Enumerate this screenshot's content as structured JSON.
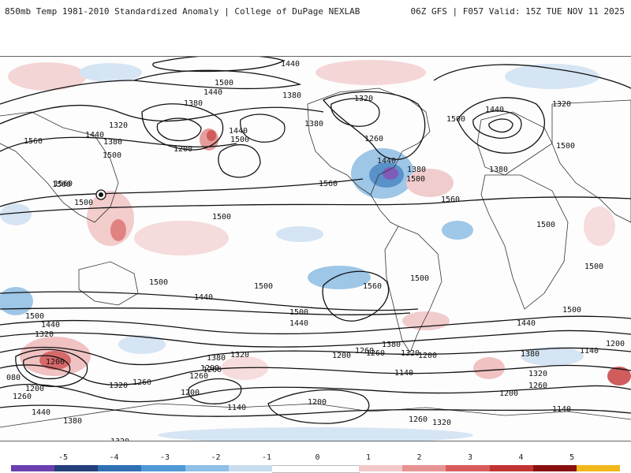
{
  "header": {
    "title_left": "850mb Temp 1981-2010 Standardized Anomaly | College of DuPage NEXLAB",
    "title_right": "06Z GFS | F057 Valid: 15Z TUE NOV 11 2025"
  },
  "map": {
    "field": "850mb temperature standardized anomaly",
    "contour_labels": [
      {
        "id": "n1440",
        "text": "1440"
      },
      {
        "id": "n1500a",
        "text": "1500"
      },
      {
        "id": "n1380a",
        "text": "1380"
      },
      {
        "id": "n1440b",
        "text": "1440"
      },
      {
        "id": "n1320a",
        "text": "1320"
      },
      {
        "id": "n1440c",
        "text": "1440"
      },
      {
        "id": "n1380b",
        "text": "1380"
      },
      {
        "id": "n1500b",
        "text": "1500"
      },
      {
        "id": "n1560a",
        "text": "1560"
      },
      {
        "id": "n1500c",
        "text": "1500"
      },
      {
        "id": "n1200a",
        "text": "1200"
      },
      {
        "id": "n1440d",
        "text": "1440"
      },
      {
        "id": "n1500d",
        "text": "1500"
      },
      {
        "id": "n1380c",
        "text": "1380"
      },
      {
        "id": "n1380d",
        "text": "1380"
      },
      {
        "id": "n1320b",
        "text": "1320"
      },
      {
        "id": "n1260a",
        "text": "1260"
      },
      {
        "id": "n1500e",
        "text": "1500"
      },
      {
        "id": "n1560b",
        "text": "1560"
      },
      {
        "id": "n1440e",
        "text": "1440"
      },
      {
        "id": "n1380e",
        "text": "1380"
      },
      {
        "id": "n1500f",
        "text": "1500"
      },
      {
        "id": "n1560c",
        "text": "1560"
      },
      {
        "id": "n1560d",
        "text": "1560"
      },
      {
        "id": "n1440f",
        "text": "1440"
      },
      {
        "id": "n1320c",
        "text": "1320"
      },
      {
        "id": "n1500g",
        "text": "1500"
      },
      {
        "id": "n1380f",
        "text": "1380"
      },
      {
        "id": "n1500h",
        "text": "1500"
      },
      {
        "id": "n1500i",
        "text": "1500"
      },
      {
        "id": "n1500j",
        "text": "1500"
      },
      {
        "id": "n1500k",
        "text": "1500"
      },
      {
        "id": "n1440g",
        "text": "1440"
      },
      {
        "id": "n1500l",
        "text": "1500"
      },
      {
        "id": "n1560e",
        "text": "1560"
      },
      {
        "id": "n1500m",
        "text": "1500"
      },
      {
        "id": "n1500n",
        "text": "1500"
      },
      {
        "id": "n1500o",
        "text": "1500"
      },
      {
        "id": "s1500a",
        "text": "1500"
      },
      {
        "id": "s1440a",
        "text": "1440"
      },
      {
        "id": "s1320a",
        "text": "1320"
      },
      {
        "id": "s1440b",
        "text": "1440"
      },
      {
        "id": "s1500b",
        "text": "1500"
      },
      {
        "id": "s1380a",
        "text": "1380"
      },
      {
        "id": "s1320b",
        "text": "1320"
      },
      {
        "id": "s1200a",
        "text": "1200"
      },
      {
        "id": "s1260a",
        "text": "1260"
      },
      {
        "id": "s1320c",
        "text": "1320"
      },
      {
        "id": "s1260b",
        "text": "1260"
      },
      {
        "id": "s1200b",
        "text": "1200"
      },
      {
        "id": "s1260c",
        "text": "1260"
      },
      {
        "id": "s1380b",
        "text": "1380"
      },
      {
        "id": "s1320d",
        "text": "1320"
      },
      {
        "id": "s1200c",
        "text": "1200"
      },
      {
        "id": "s1140a",
        "text": "1140"
      },
      {
        "id": "s1200d",
        "text": "1200"
      },
      {
        "id": "s1260d",
        "text": "1260"
      },
      {
        "id": "s1440c",
        "text": "1440"
      },
      {
        "id": "s1380c",
        "text": "1380"
      },
      {
        "id": "s1320e",
        "text": "1320"
      },
      {
        "id": "s1260e",
        "text": "1260"
      },
      {
        "id": "s1200e",
        "text": "1200"
      },
      {
        "id": "s1140b",
        "text": "1140"
      },
      {
        "id": "s1200f",
        "text": "1200"
      },
      {
        "id": "s1080a",
        "text": "080"
      },
      {
        "id": "s1200g",
        "text": "1200"
      },
      {
        "id": "s1260f",
        "text": "1260"
      },
      {
        "id": "s1320f",
        "text": "1320"
      },
      {
        "id": "s1440d",
        "text": "1440"
      },
      {
        "id": "s1380d",
        "text": "1380"
      },
      {
        "id": "s1260g",
        "text": "1260"
      },
      {
        "id": "s1320g",
        "text": "1320"
      },
      {
        "id": "s1140c",
        "text": "1140"
      },
      {
        "id": "s1200h",
        "text": "1200"
      },
      {
        "id": "s1260h",
        "text": "1260"
      },
      {
        "id": "s1200i",
        "text": "1200"
      },
      {
        "id": "s1140d",
        "text": "1140"
      }
    ]
  },
  "colorbar": {
    "ticks": [
      "-5",
      "-4",
      "-3",
      "-2",
      "-1",
      "0",
      "1",
      "2",
      "3",
      "4",
      "5"
    ],
    "colors": [
      "#6a3fb0",
      "#243f7a",
      "#2f6fb4",
      "#4f99d6",
      "#8fbfe6",
      "#c9ddef",
      "#ffffff",
      "#ffffff",
      "#f2c9c9",
      "#e89393",
      "#d85b5b",
      "#c23333",
      "#8a1010",
      "#f1b71b"
    ]
  }
}
